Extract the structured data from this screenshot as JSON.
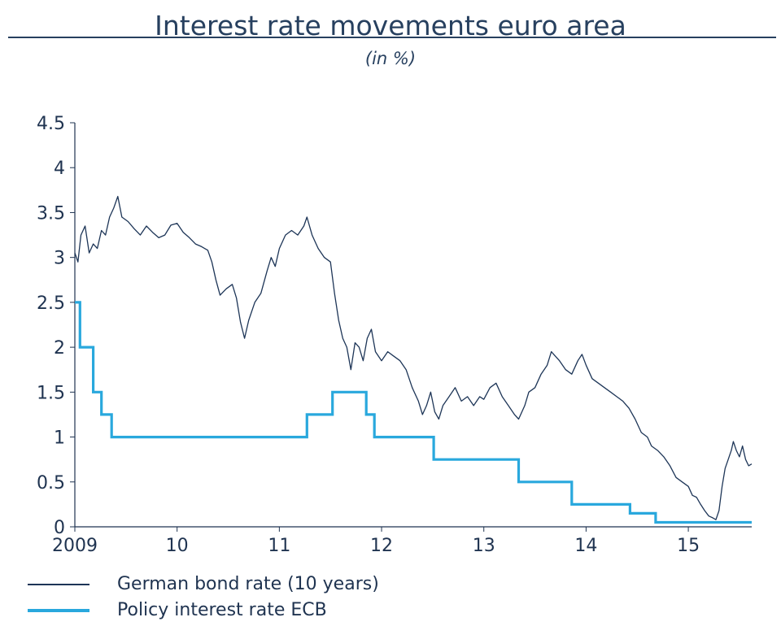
{
  "chart_data": {
    "type": "line",
    "title": "Interest rate movements euro area",
    "subtitle": "(in %)",
    "xlabel": "",
    "ylabel": "",
    "xlim": [
      2009.0,
      2015.62
    ],
    "ylim": [
      0,
      4.5
    ],
    "y_ticks": [
      0,
      0.5,
      1,
      1.5,
      2,
      2.5,
      3,
      3.5,
      4,
      4.5
    ],
    "y_tick_labels": [
      "0",
      "0.5",
      "1",
      "1.5",
      "2",
      "2.5",
      "3",
      "3.5",
      "4",
      "4.5"
    ],
    "x_ticks": [
      2009,
      2010,
      2011,
      2012,
      2013,
      2014,
      2015
    ],
    "x_tick_labels": [
      "2009",
      "10",
      "11",
      "12",
      "13",
      "14",
      "15"
    ],
    "grid": false,
    "legend_position": "bottom-left",
    "series": [
      {
        "name": "German bond rate (10 years)",
        "color": "#1d3557",
        "style": "thin",
        "points": [
          [
            2009.0,
            3.05
          ],
          [
            2009.03,
            2.95
          ],
          [
            2009.06,
            3.25
          ],
          [
            2009.1,
            3.35
          ],
          [
            2009.14,
            3.05
          ],
          [
            2009.18,
            3.15
          ],
          [
            2009.22,
            3.1
          ],
          [
            2009.26,
            3.3
          ],
          [
            2009.3,
            3.25
          ],
          [
            2009.34,
            3.45
          ],
          [
            2009.38,
            3.55
          ],
          [
            2009.42,
            3.68
          ],
          [
            2009.46,
            3.45
          ],
          [
            2009.52,
            3.4
          ],
          [
            2009.58,
            3.32
          ],
          [
            2009.64,
            3.25
          ],
          [
            2009.7,
            3.35
          ],
          [
            2009.76,
            3.28
          ],
          [
            2009.82,
            3.22
          ],
          [
            2009.88,
            3.25
          ],
          [
            2009.94,
            3.36
          ],
          [
            2010.0,
            3.38
          ],
          [
            2010.06,
            3.28
          ],
          [
            2010.12,
            3.22
          ],
          [
            2010.18,
            3.15
          ],
          [
            2010.24,
            3.12
          ],
          [
            2010.3,
            3.08
          ],
          [
            2010.34,
            2.95
          ],
          [
            2010.38,
            2.75
          ],
          [
            2010.42,
            2.58
          ],
          [
            2010.48,
            2.65
          ],
          [
            2010.54,
            2.7
          ],
          [
            2010.58,
            2.55
          ],
          [
            2010.62,
            2.28
          ],
          [
            2010.66,
            2.1
          ],
          [
            2010.7,
            2.3
          ],
          [
            2010.76,
            2.5
          ],
          [
            2010.82,
            2.6
          ],
          [
            2010.88,
            2.85
          ],
          [
            2010.92,
            3.0
          ],
          [
            2010.96,
            2.9
          ],
          [
            2011.0,
            3.1
          ],
          [
            2011.06,
            3.25
          ],
          [
            2011.12,
            3.3
          ],
          [
            2011.18,
            3.25
          ],
          [
            2011.24,
            3.35
          ],
          [
            2011.27,
            3.45
          ],
          [
            2011.32,
            3.25
          ],
          [
            2011.38,
            3.1
          ],
          [
            2011.44,
            3.0
          ],
          [
            2011.5,
            2.95
          ],
          [
            2011.54,
            2.6
          ],
          [
            2011.58,
            2.3
          ],
          [
            2011.62,
            2.1
          ],
          [
            2011.66,
            2.0
          ],
          [
            2011.7,
            1.75
          ],
          [
            2011.74,
            2.05
          ],
          [
            2011.78,
            2.0
          ],
          [
            2011.82,
            1.85
          ],
          [
            2011.86,
            2.1
          ],
          [
            2011.9,
            2.2
          ],
          [
            2011.94,
            1.95
          ],
          [
            2012.0,
            1.85
          ],
          [
            2012.06,
            1.95
          ],
          [
            2012.12,
            1.9
          ],
          [
            2012.18,
            1.85
          ],
          [
            2012.24,
            1.75
          ],
          [
            2012.3,
            1.55
          ],
          [
            2012.36,
            1.4
          ],
          [
            2012.4,
            1.25
          ],
          [
            2012.44,
            1.35
          ],
          [
            2012.48,
            1.5
          ],
          [
            2012.52,
            1.28
          ],
          [
            2012.56,
            1.2
          ],
          [
            2012.6,
            1.35
          ],
          [
            2012.66,
            1.45
          ],
          [
            2012.72,
            1.55
          ],
          [
            2012.78,
            1.4
          ],
          [
            2012.84,
            1.45
          ],
          [
            2012.9,
            1.35
          ],
          [
            2012.96,
            1.45
          ],
          [
            2013.0,
            1.42
          ],
          [
            2013.06,
            1.55
          ],
          [
            2013.12,
            1.6
          ],
          [
            2013.18,
            1.45
          ],
          [
            2013.24,
            1.35
          ],
          [
            2013.3,
            1.25
          ],
          [
            2013.34,
            1.2
          ],
          [
            2013.4,
            1.35
          ],
          [
            2013.44,
            1.5
          ],
          [
            2013.5,
            1.55
          ],
          [
            2013.56,
            1.7
          ],
          [
            2013.62,
            1.8
          ],
          [
            2013.66,
            1.95
          ],
          [
            2013.7,
            1.9
          ],
          [
            2013.74,
            1.85
          ],
          [
            2013.8,
            1.75
          ],
          [
            2013.86,
            1.7
          ],
          [
            2013.92,
            1.85
          ],
          [
            2013.96,
            1.92
          ],
          [
            2014.0,
            1.8
          ],
          [
            2014.06,
            1.65
          ],
          [
            2014.12,
            1.6
          ],
          [
            2014.18,
            1.55
          ],
          [
            2014.24,
            1.5
          ],
          [
            2014.3,
            1.45
          ],
          [
            2014.36,
            1.4
          ],
          [
            2014.42,
            1.32
          ],
          [
            2014.48,
            1.2
          ],
          [
            2014.54,
            1.05
          ],
          [
            2014.6,
            1.0
          ],
          [
            2014.64,
            0.9
          ],
          [
            2014.7,
            0.85
          ],
          [
            2014.76,
            0.78
          ],
          [
            2014.82,
            0.68
          ],
          [
            2014.88,
            0.55
          ],
          [
            2014.94,
            0.5
          ],
          [
            2015.0,
            0.45
          ],
          [
            2015.04,
            0.35
          ],
          [
            2015.08,
            0.33
          ],
          [
            2015.12,
            0.25
          ],
          [
            2015.16,
            0.18
          ],
          [
            2015.2,
            0.12
          ],
          [
            2015.24,
            0.1
          ],
          [
            2015.27,
            0.08
          ],
          [
            2015.3,
            0.18
          ],
          [
            2015.33,
            0.45
          ],
          [
            2015.36,
            0.65
          ],
          [
            2015.39,
            0.75
          ],
          [
            2015.42,
            0.85
          ],
          [
            2015.44,
            0.95
          ],
          [
            2015.47,
            0.85
          ],
          [
            2015.5,
            0.78
          ],
          [
            2015.53,
            0.9
          ],
          [
            2015.56,
            0.75
          ],
          [
            2015.59,
            0.68
          ],
          [
            2015.62,
            0.7
          ]
        ]
      },
      {
        "name": "Policy interest rate ECB",
        "color": "#29a8dd",
        "style": "thick-step",
        "points": [
          [
            2009.0,
            2.5
          ],
          [
            2009.05,
            2.5
          ],
          [
            2009.05,
            2.0
          ],
          [
            2009.18,
            2.0
          ],
          [
            2009.18,
            1.5
          ],
          [
            2009.26,
            1.5
          ],
          [
            2009.26,
            1.25
          ],
          [
            2009.36,
            1.25
          ],
          [
            2009.36,
            1.0
          ],
          [
            2011.27,
            1.0
          ],
          [
            2011.27,
            1.25
          ],
          [
            2011.52,
            1.25
          ],
          [
            2011.52,
            1.5
          ],
          [
            2011.85,
            1.5
          ],
          [
            2011.85,
            1.25
          ],
          [
            2011.93,
            1.25
          ],
          [
            2011.93,
            1.0
          ],
          [
            2012.51,
            1.0
          ],
          [
            2012.51,
            0.75
          ],
          [
            2013.34,
            0.75
          ],
          [
            2013.34,
            0.5
          ],
          [
            2013.86,
            0.5
          ],
          [
            2013.86,
            0.25
          ],
          [
            2014.43,
            0.25
          ],
          [
            2014.43,
            0.15
          ],
          [
            2014.68,
            0.15
          ],
          [
            2014.68,
            0.05
          ],
          [
            2015.62,
            0.05
          ]
        ]
      }
    ]
  }
}
